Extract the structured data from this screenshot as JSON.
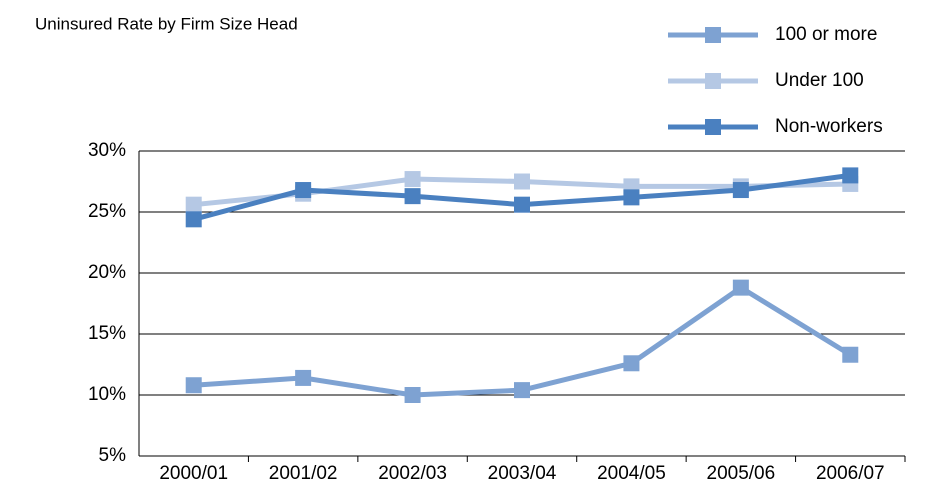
{
  "chart_data": {
    "type": "line",
    "title": "Uninsured Rate by Firm Size Head",
    "categories": [
      "2000/01",
      "2001/02",
      "2002/03",
      "2003/04",
      "2004/05",
      "2005/06",
      "2006/07"
    ],
    "series": [
      {
        "name": "100 or more",
        "color": "#7ea2d2",
        "values": [
          10.8,
          11.4,
          10.0,
          10.4,
          12.6,
          18.8,
          13.3
        ]
      },
      {
        "name": "Under 100",
        "color": "#b5c8e4",
        "values": [
          25.6,
          26.5,
          27.7,
          27.5,
          27.1,
          27.1,
          27.3
        ]
      },
      {
        "name": "Non-workers",
        "color": "#4a80c0",
        "values": [
          24.4,
          26.8,
          26.3,
          25.6,
          26.2,
          26.8,
          28.0
        ]
      }
    ],
    "ylim": [
      5,
      30
    ],
    "yticks": [
      {
        "value": 5,
        "label": "5%"
      },
      {
        "value": 10,
        "label": "10%"
      },
      {
        "value": 15,
        "label": "15%"
      },
      {
        "value": 20,
        "label": "20%"
      },
      {
        "value": 25,
        "label": "25%"
      },
      {
        "value": 30,
        "label": "30%"
      }
    ],
    "grid": true,
    "legend": "top-right"
  }
}
